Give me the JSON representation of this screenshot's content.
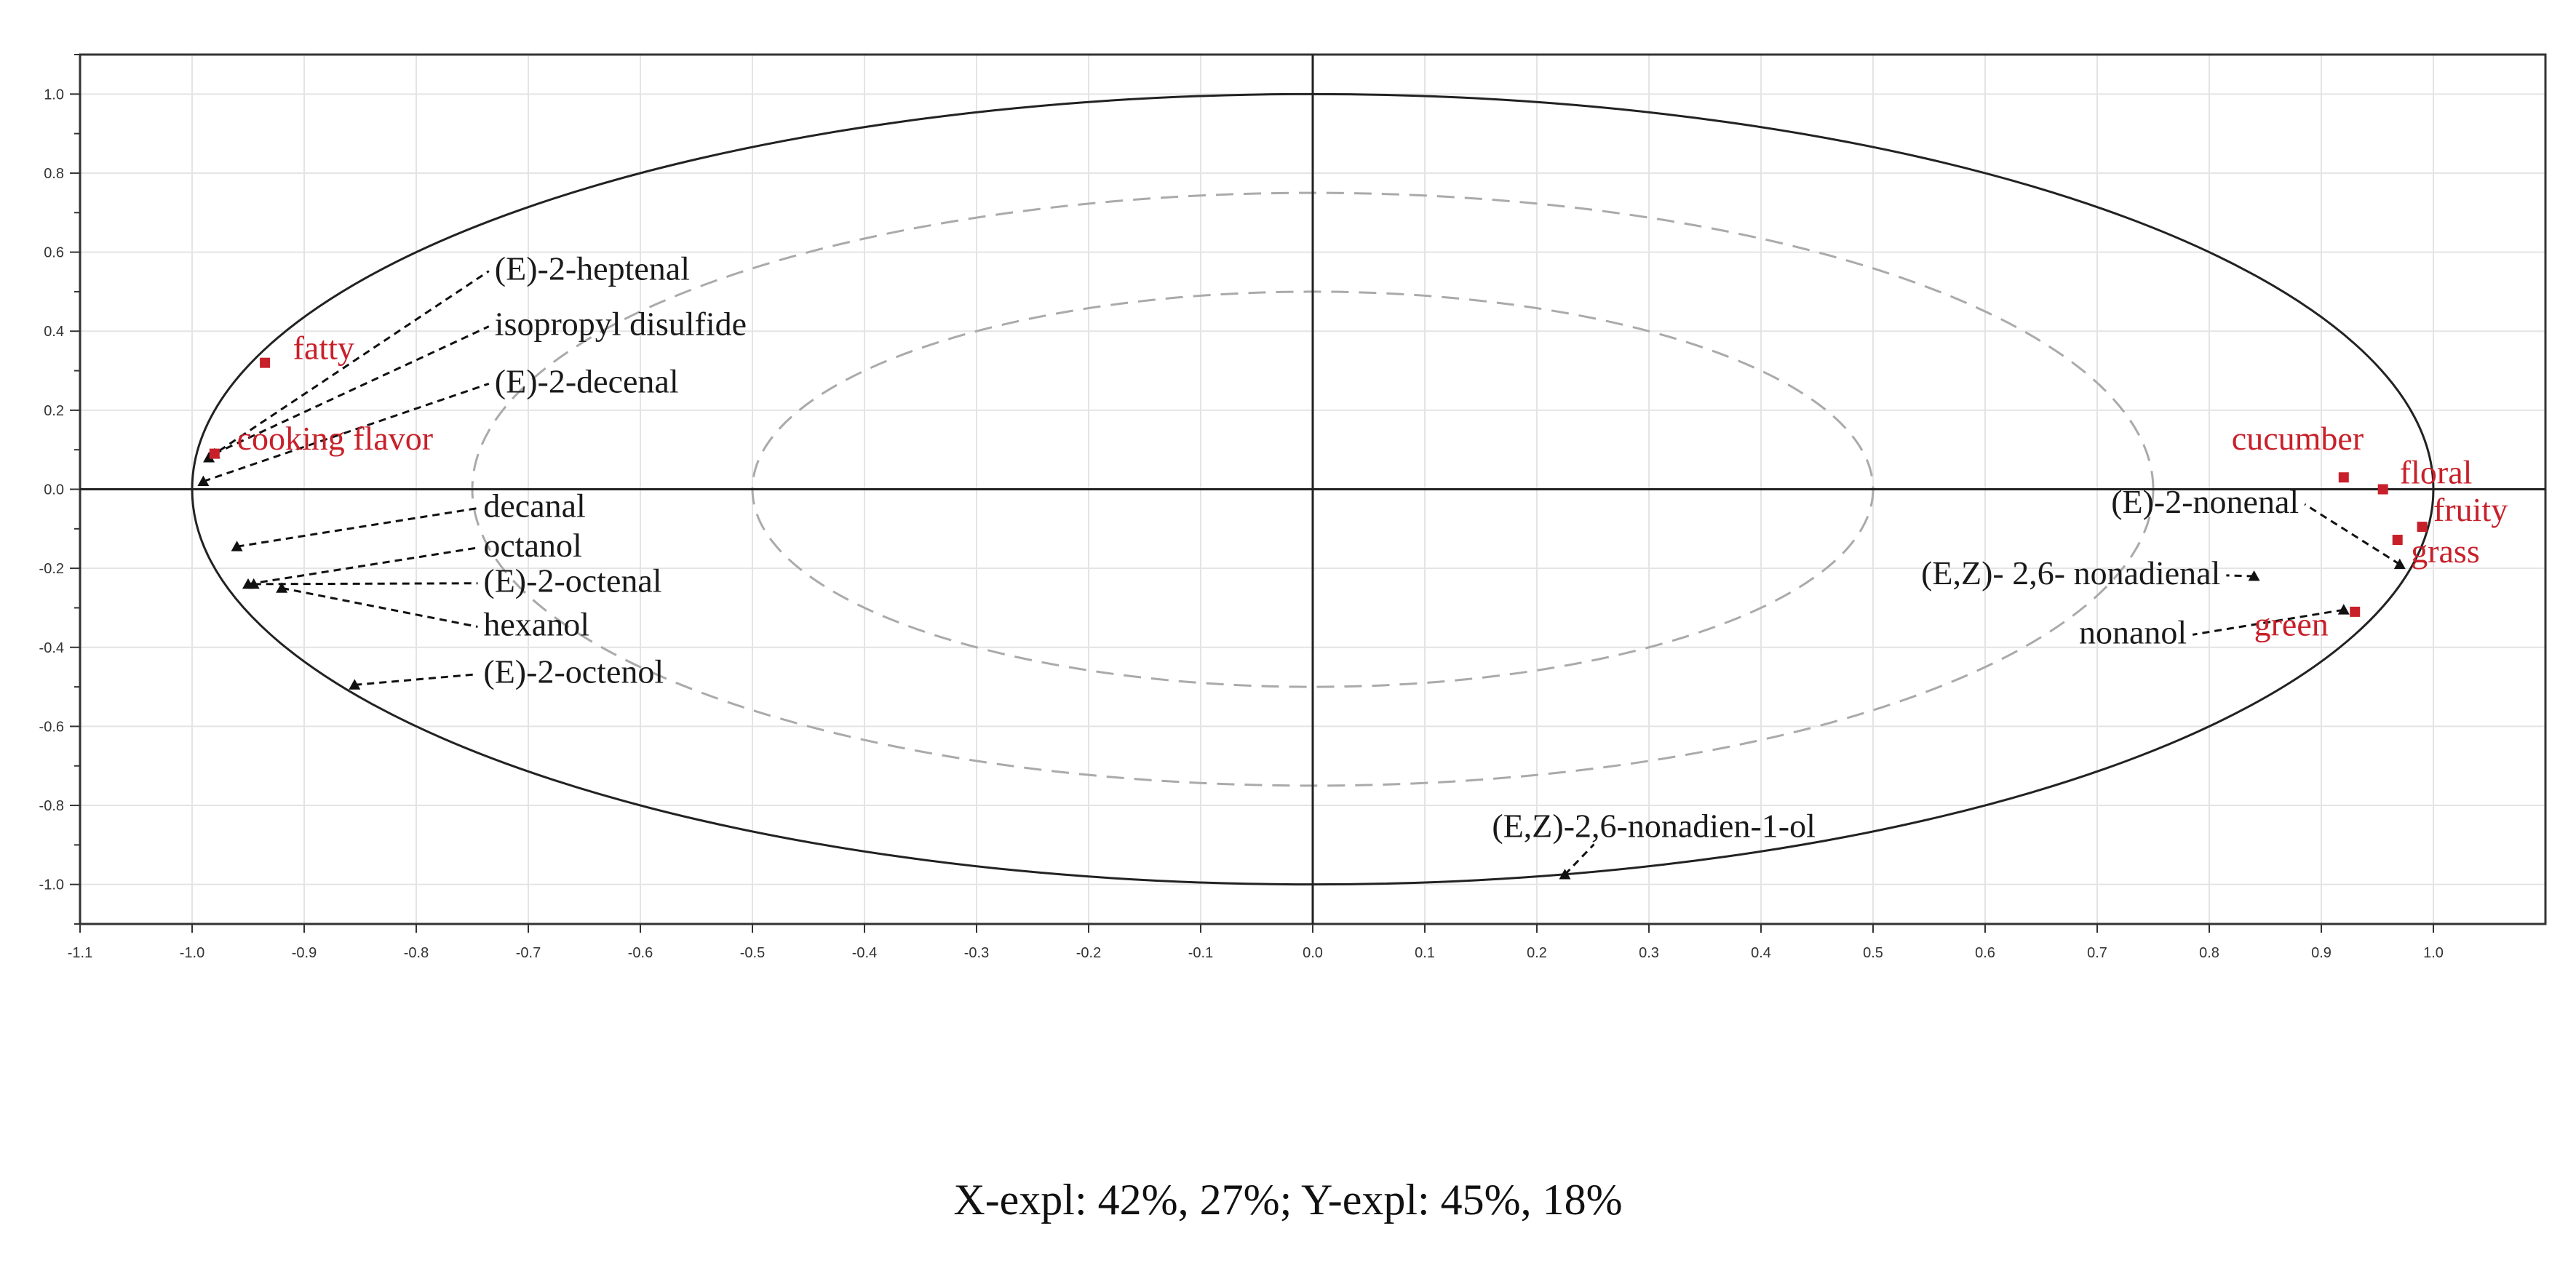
{
  "caption": "X-expl: 42%, 27%; Y-expl: 45%, 18%",
  "chart_data": {
    "type": "scatter",
    "title": "",
    "xlabel": "",
    "ylabel": "",
    "xlim": [
      -1.1,
      1.1
    ],
    "ylim": [
      -1.1,
      1.1
    ],
    "grid": true,
    "x_ticks": [
      -1.1,
      -1.0,
      -0.9,
      -0.8,
      -0.7,
      -0.6,
      -0.5,
      -0.4,
      -0.3,
      -0.2,
      -0.1,
      0.0,
      0.1,
      0.2,
      0.3,
      0.4,
      0.5,
      0.6,
      0.7,
      0.8,
      0.9,
      1.0
    ],
    "x_tick_labels": [
      "-1.1",
      "-1.0",
      "-0.9",
      "-0.8",
      "-0.7",
      "-0.6",
      "-0.5",
      "-0.4",
      "-0.3",
      "-0.2",
      "-0.1",
      "0.0",
      "0.1",
      "0.2",
      "0.3",
      "0.4",
      "0.5",
      "0.6",
      "0.7",
      "0.8",
      "0.9",
      "1.0"
    ],
    "y_ticks": [
      1.0,
      0.8,
      0.6,
      0.4,
      0.2,
      0.0,
      -0.2,
      -0.4,
      -0.6,
      -0.8,
      -1.0
    ],
    "y_tick_labels": [
      "1.0",
      "0.8",
      "0.6",
      "0.4",
      "0.2",
      "0.0",
      "-0.2",
      "-0.4",
      "-0.6",
      "-0.8",
      "-1.0"
    ],
    "correlation_ellipses": [
      {
        "radius": 1.0,
        "style": "solid"
      },
      {
        "radius": 0.75,
        "style": "dashed"
      },
      {
        "radius": 0.5,
        "style": "dashed"
      }
    ],
    "colors": {
      "variables": "#111111",
      "attributes": "#c8202a",
      "inner_ellipses": "#aaaaaa"
    },
    "series": [
      {
        "marker": "triangle",
        "points": [
          {
            "x": -0.985,
            "y": 0.08,
            "label": "(E)-2-heptenal",
            "label_x": -0.73,
            "label_y": 0.53
          },
          {
            "x": -0.98,
            "y": 0.09,
            "label": "isopropyl disulfide",
            "label_x": -0.73,
            "label_y": 0.39
          },
          {
            "x": -0.99,
            "y": 0.02,
            "label": "(E)-2-decenal",
            "label_x": -0.73,
            "label_y": 0.245
          },
          {
            "x": -0.96,
            "y": -0.145,
            "label": "decanal",
            "label_x": -0.74,
            "label_y": -0.07
          },
          {
            "x": -0.95,
            "y": -0.24,
            "label": "octanol",
            "label_x": -0.74,
            "label_y": -0.17
          },
          {
            "x": -0.945,
            "y": -0.24,
            "label": "(E)-2-octenal",
            "label_x": -0.74,
            "label_y": -0.26
          },
          {
            "x": -0.92,
            "y": -0.25,
            "label": "hexanol",
            "label_x": -0.74,
            "label_y": -0.37
          },
          {
            "x": -0.855,
            "y": -0.495,
            "label": "(E)-2-octenol",
            "label_x": -0.74,
            "label_y": -0.49
          },
          {
            "x": 0.97,
            "y": -0.19,
            "label": "(E)-2-nonenal",
            "label_x": 0.88,
            "label_y": -0.06
          },
          {
            "x": 0.84,
            "y": -0.22,
            "label": "(E,Z)- 2,6- nonadienal",
            "label_x": 0.81,
            "label_y": -0.24
          },
          {
            "x": 0.92,
            "y": -0.305,
            "label": "nonanol",
            "label_x": 0.78,
            "label_y": -0.39
          },
          {
            "x": 0.225,
            "y": -0.975,
            "label": "(E,Z)-2,6-nonadien-1-ol",
            "label_x": 0.16,
            "label_y": -0.88
          }
        ]
      },
      {
        "marker": "square",
        "points": [
          {
            "x": -0.935,
            "y": 0.32,
            "label": "fatty",
            "label_x": -0.91,
            "label_y": 0.33
          },
          {
            "x": -0.98,
            "y": 0.09,
            "label": "cooking flavor",
            "label_x": -0.96,
            "label_y": 0.1
          },
          {
            "x": 0.92,
            "y": 0.03,
            "label": "cucumber",
            "label_x": 0.82,
            "label_y": 0.1
          },
          {
            "x": 0.955,
            "y": 0.0,
            "label": "floral",
            "label_x": 0.97,
            "label_y": 0.015
          },
          {
            "x": 0.99,
            "y": -0.095,
            "label": "fruity",
            "label_x": 1.0,
            "label_y": -0.08
          },
          {
            "x": 0.968,
            "y": -0.128,
            "label": "grass",
            "label_x": 0.98,
            "label_y": -0.185
          },
          {
            "x": 0.93,
            "y": -0.31,
            "label": "green",
            "label_x": 0.84,
            "label_y": -0.37
          }
        ]
      }
    ]
  }
}
